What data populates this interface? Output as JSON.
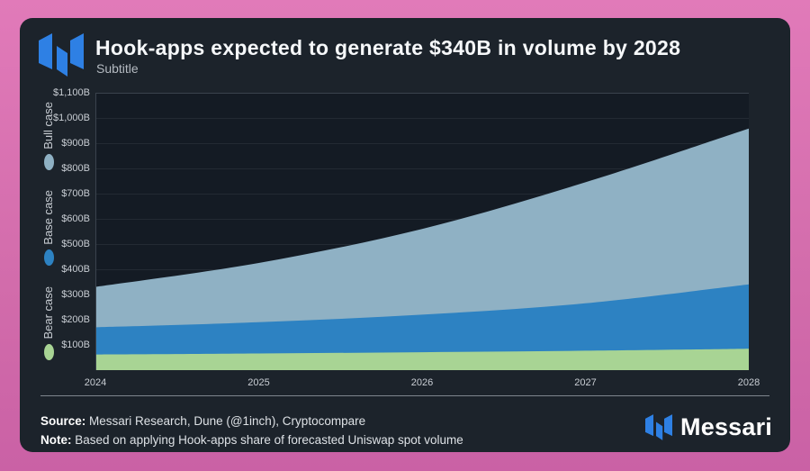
{
  "header": {
    "title": "Hook-apps expected to generate $340B in volume by 2028",
    "subtitle": "Subtitle"
  },
  "chart_data": {
    "type": "area",
    "title": "Hook-apps expected to generate $340B in volume by 2028",
    "x": [
      2024,
      2025,
      2026,
      2027,
      2028
    ],
    "x_ticks": [
      "2024",
      "2025",
      "2026",
      "2027",
      "2028"
    ],
    "y_ticks": [
      "$1,100B",
      "$1,000B",
      "$900B",
      "$800B",
      "$700B",
      "$600B",
      "$500B",
      "$400B",
      "$300B",
      "$200B",
      "$100B"
    ],
    "ylim": [
      0,
      1100
    ],
    "xlabel": "",
    "ylabel": "",
    "grid": true,
    "layering": "overlaid-not-stacked",
    "legend_position": "left-vertical",
    "series": [
      {
        "name": "Bull case",
        "values": [
          330,
          425,
          560,
          745,
          958
        ],
        "color": "#8fb1c4",
        "unit": "B USD"
      },
      {
        "name": "Base case",
        "values": [
          170,
          190,
          220,
          265,
          340
        ],
        "color": "#2d82c2",
        "unit": "B USD"
      },
      {
        "name": "Bear case",
        "values": [
          62,
          66,
          71,
          77,
          85
        ],
        "color": "#a8d494",
        "unit": "B USD"
      }
    ]
  },
  "footer": {
    "source_label": "Source:",
    "source_text": "Messari Research, Dune (@1inch),  Cryptocompare",
    "note_label": "Note:",
    "note_text": "Based on applying Hook-apps share of forecasted Uniswap spot volume",
    "brand": "Messari"
  },
  "colors": {
    "frame_pink": "#d974b3",
    "card_bg": "#1c232b",
    "plot_bg": "#141b24",
    "gridline": "#232a33",
    "axis_line": "#3a434d",
    "tick_text": "#c9ced4",
    "bull": "#8fb1c4",
    "base": "#2d82c2",
    "bear": "#a8d494",
    "messari_blue": "#2e80e4"
  }
}
